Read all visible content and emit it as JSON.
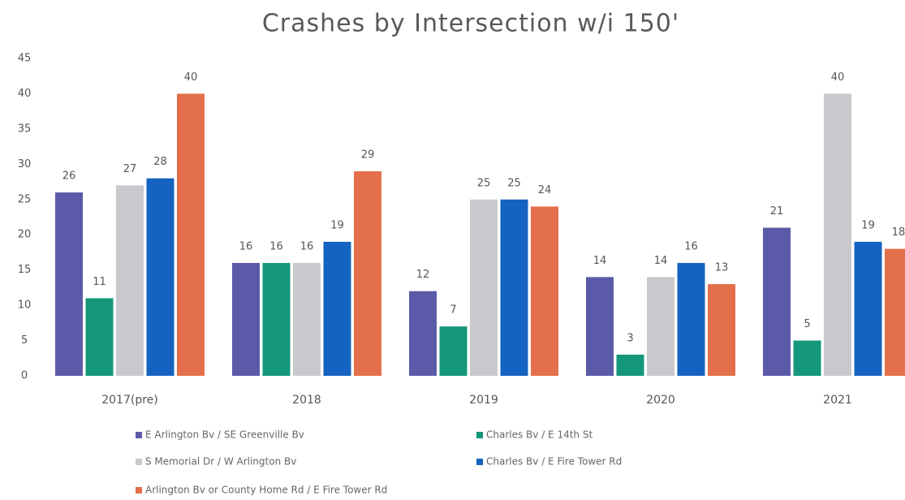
{
  "chart_data": {
    "type": "bar",
    "title": "Crashes by Intersection w/i 150'",
    "categories": [
      "2017(pre)",
      "2018",
      "2019",
      "2020",
      "2021"
    ],
    "series": [
      {
        "name": "E Arlington Bv / SE Greenville Bv",
        "color": "#5b5aa8",
        "values": [
          26,
          16,
          12,
          14,
          21
        ]
      },
      {
        "name": "Charles Bv / E 14th St",
        "color": "#14977a",
        "values": [
          11,
          16,
          7,
          3,
          5
        ]
      },
      {
        "name": "S Memorial Dr / W Arlington Bv",
        "color": "#c9c9cd",
        "values": [
          27,
          16,
          25,
          14,
          40
        ]
      },
      {
        "name": "Charles Bv / E Fire Tower Rd",
        "color": "#1563c0",
        "values": [
          28,
          19,
          25,
          16,
          19
        ]
      },
      {
        "name": "Arlington Bv or County Home Rd / E Fire Tower Rd",
        "color": "#e3704a",
        "values": [
          40,
          29,
          24,
          13,
          18
        ]
      }
    ],
    "ylim": [
      0,
      45
    ],
    "yticks": [
      0,
      5,
      10,
      15,
      20,
      25,
      30,
      35,
      40,
      45
    ],
    "grid": false
  }
}
